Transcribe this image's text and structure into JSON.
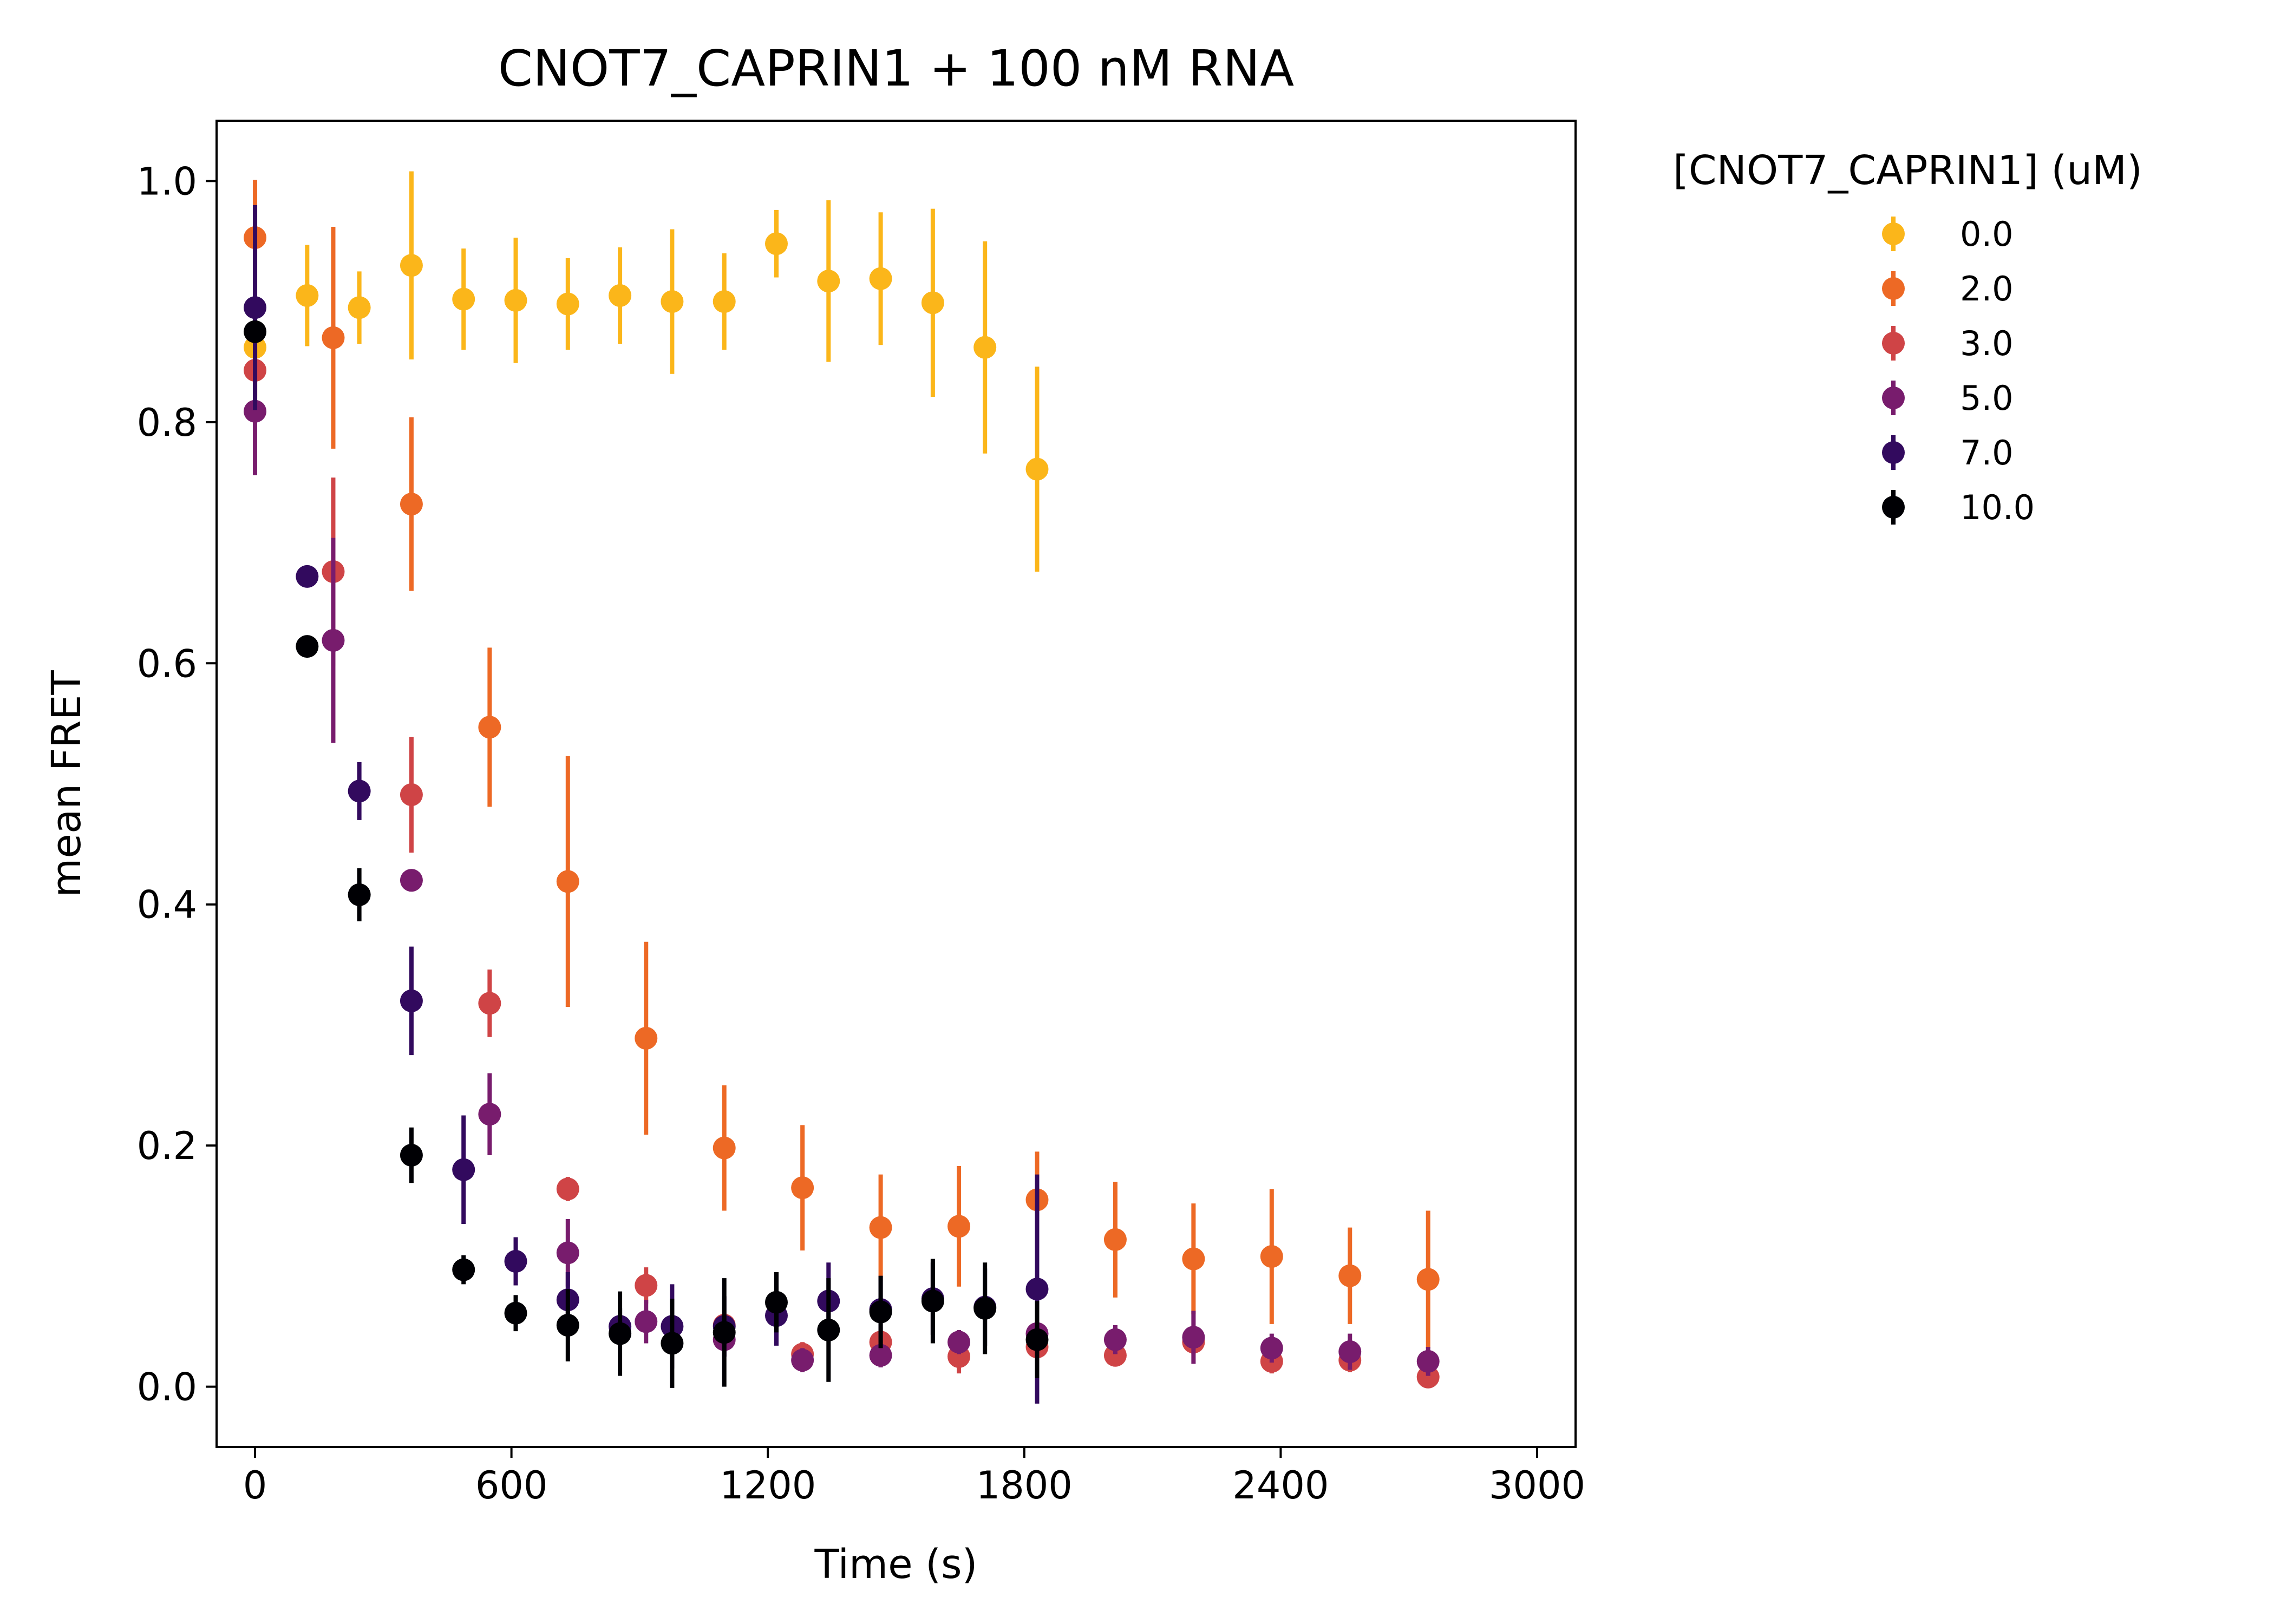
{
  "chart_data": {
    "type": "scatter",
    "title": "CNOT7_CAPRIN1 + 100 nM RNA",
    "xlabel": "Time (s)",
    "ylabel": "mean FRET",
    "xlim": [
      -90,
      3090
    ],
    "ylim": [
      -0.05,
      1.05
    ],
    "xticks": [
      0,
      600,
      1200,
      1800,
      2400,
      3000
    ],
    "xtick_labels": [
      "0",
      "600",
      "1200",
      "1800",
      "2400",
      "3000"
    ],
    "yticks": [
      0.0,
      0.2,
      0.4,
      0.6,
      0.8,
      1.0
    ],
    "ytick_labels": [
      "0.0",
      "0.2",
      "0.4",
      "0.6",
      "0.8",
      "1.0"
    ],
    "grid": false,
    "error_bars": true,
    "legend": {
      "title": "[CNOT7_CAPRIN1] (uM)",
      "position": "outside-right-top"
    },
    "series": [
      {
        "name": "0.0",
        "color": "#fbb61a",
        "x": [
          0,
          122,
          244,
          366,
          488,
          610,
          732,
          854,
          976,
          1098,
          1220,
          1342,
          1464,
          1586,
          1708,
          1830
        ],
        "y": [
          0.862,
          0.905,
          0.895,
          0.93,
          0.902,
          0.901,
          0.898,
          0.905,
          0.9,
          0.9,
          0.948,
          0.917,
          0.919,
          0.899,
          0.862,
          0.761
        ],
        "err": [
          0.04,
          0.042,
          0.03,
          0.078,
          0.042,
          0.052,
          0.038,
          0.04,
          0.06,
          0.04,
          0.028,
          0.067,
          0.055,
          0.078,
          0.088,
          0.085
        ]
      },
      {
        "name": "2.0",
        "color": "#ed6925",
        "x": [
          0,
          183,
          366,
          549,
          732,
          915,
          1098,
          1281,
          1464,
          1647,
          1830,
          2013,
          2196,
          2379,
          2562,
          2745
        ],
        "y": [
          0.953,
          0.87,
          0.732,
          0.547,
          0.419,
          0.289,
          0.198,
          0.165,
          0.132,
          0.133,
          0.155,
          0.122,
          0.106,
          0.108,
          0.092,
          0.089
        ],
        "err": [
          0.048,
          0.092,
          0.072,
          0.066,
          0.104,
          0.08,
          0.052,
          0.052,
          0.044,
          0.05,
          0.04,
          0.048,
          0.046,
          0.056,
          0.04,
          0.057
        ]
      },
      {
        "name": "3.0",
        "color": "#cf4446",
        "x": [
          0,
          183,
          366,
          549,
          732,
          915,
          1098,
          1281,
          1464,
          1647,
          1830,
          2013,
          2196,
          2379,
          2562,
          2745
        ],
        "y": [
          0.843,
          0.676,
          0.491,
          0.318,
          0.164,
          0.084,
          0.051,
          0.027,
          0.037,
          0.025,
          0.033,
          0.026,
          0.037,
          0.021,
          0.022,
          0.008
        ],
        "err": [
          0.04,
          0.078,
          0.048,
          0.028,
          0.01,
          0.015,
          0.01,
          0.01,
          0.012,
          0.014,
          0.014,
          0.008,
          0.01,
          0.01,
          0.01,
          0.006
        ]
      },
      {
        "name": "5.0",
        "color": "#781c6d",
        "x": [
          0,
          183,
          366,
          549,
          732,
          915,
          1098,
          1281,
          1464,
          1647,
          1830,
          2013,
          2196,
          2379,
          2562,
          2745
        ],
        "y": [
          0.809,
          0.619,
          0.42,
          0.226,
          0.111,
          0.054,
          0.039,
          0.022,
          0.026,
          0.037,
          0.044,
          0.039,
          0.041,
          0.032,
          0.029,
          0.021
        ],
        "err": [
          0.053,
          0.085,
          0.0,
          0.034,
          0.028,
          0.018,
          0.014,
          0.01,
          0.01,
          0.01,
          0.02,
          0.012,
          0.022,
          0.012,
          0.015,
          0.012
        ]
      },
      {
        "name": "7.0",
        "color": "#320a5e",
        "x": [
          0,
          122,
          244,
          366,
          488,
          610,
          732,
          854,
          976,
          1098,
          1220,
          1342,
          1464,
          1586,
          1708,
          1830
        ],
        "y": [
          0.895,
          0.672,
          0.494,
          0.32,
          0.18,
          0.104,
          0.072,
          0.05,
          0.05,
          0.05,
          0.059,
          0.071,
          0.064,
          0.073,
          0.066,
          0.081
        ],
        "err": [
          0.085,
          0.0,
          0.024,
          0.045,
          0.045,
          0.02,
          0.023,
          0.015,
          0.035,
          0.025,
          0.025,
          0.032,
          0.028,
          0.03,
          0.032,
          0.095
        ]
      },
      {
        "name": "10.0",
        "color": "#000004",
        "x": [
          0,
          122,
          244,
          366,
          488,
          610,
          732,
          854,
          976,
          1098,
          1220,
          1342,
          1464,
          1586,
          1708,
          1830
        ],
        "y": [
          0.875,
          0.614,
          0.408,
          0.192,
          0.097,
          0.061,
          0.051,
          0.044,
          0.036,
          0.045,
          0.07,
          0.047,
          0.062,
          0.071,
          0.065,
          0.039
        ],
        "err": [
          0.0,
          0.0,
          0.022,
          0.023,
          0.012,
          0.015,
          0.03,
          0.035,
          0.037,
          0.045,
          0.025,
          0.043,
          0.03,
          0.035,
          0.038,
          0.032
        ]
      }
    ]
  }
}
